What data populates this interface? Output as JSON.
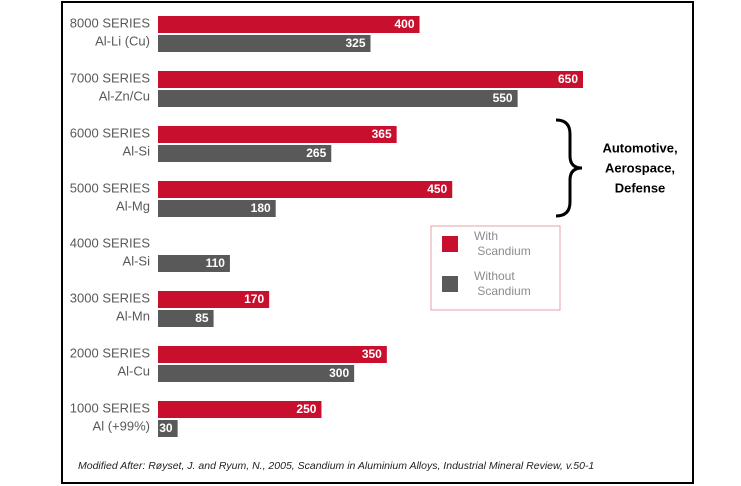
{
  "chart_data": {
    "type": "bar",
    "orientation": "horizontal",
    "categories": [
      "8000 SERIES",
      "7000 SERIES",
      "6000 SERIES",
      "5000 SERIES",
      "4000 SERIES",
      "3000 SERIES",
      "2000 SERIES",
      "1000 SERIES"
    ],
    "alloys": [
      "Al-Li (Cu)",
      "Al-Zn/Cu",
      "Al-Si",
      "Al-Mg",
      "Al-Si",
      "Al-Mn",
      "Al-Cu",
      "Al (+99%)"
    ],
    "series": [
      {
        "name": "With Scandium",
        "color": "#c8102e",
        "values": [
          400,
          650,
          365,
          450,
          null,
          170,
          350,
          250
        ]
      },
      {
        "name": "Without Scandium",
        "color": "#595959",
        "values": [
          325,
          550,
          265,
          180,
          110,
          85,
          300,
          30
        ]
      }
    ],
    "annotation": [
      "Automotive,",
      "Aerospace,",
      "Defense"
    ],
    "footnote": "Modified After: Røyset, J. and Ryum, N., 2005, Scandium in Aluminium Alloys, Industrial Mineral Review, v.50-1"
  }
}
